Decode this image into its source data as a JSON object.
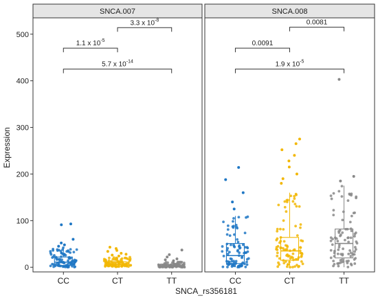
{
  "chart_data": {
    "type": "box",
    "xlabel": "SNCA_rs356181",
    "ylabel": "Expression",
    "categories": [
      "CC",
      "CT",
      "TT"
    ],
    "yticks": [
      0,
      100,
      200,
      300,
      400,
      500
    ],
    "ylim": [
      -10,
      535
    ],
    "colors": {
      "CC": "#1f77c4",
      "CT": "#f2b705",
      "TT": "#888888"
    },
    "panels": [
      {
        "title": "SNCA.007",
        "boxes": [
          {
            "category": "CC",
            "min": 0,
            "q1": 4,
            "median": 11,
            "q3": 22,
            "max": 42
          },
          {
            "category": "CT",
            "min": 0,
            "q1": 3,
            "median": 6,
            "q3": 12,
            "max": 22
          },
          {
            "category": "TT",
            "min": 0,
            "q1": 1,
            "median": 3,
            "q3": 6,
            "max": 12
          }
        ],
        "outliers": [
          {
            "category": "CC",
            "values": [
              93,
              91,
              60,
              52,
              48,
              45
            ]
          },
          {
            "category": "CT",
            "values": [
              43,
              40,
              36,
              34,
              30,
              28,
              26,
              24
            ]
          },
          {
            "category": "TT",
            "values": [
              37,
              27,
              22,
              18,
              16,
              14
            ]
          }
        ],
        "comparisons": [
          {
            "groups": [
              "CT",
              "TT"
            ],
            "label": "3.3 x 10",
            "exp": "-8",
            "y": 514
          },
          {
            "groups": [
              "CC",
              "CT"
            ],
            "label": "1.1 x 10",
            "exp": "-5",
            "y": 470
          },
          {
            "groups": [
              "CC",
              "TT"
            ],
            "label": "5.7 x 10",
            "exp": "-14",
            "y": 425
          }
        ]
      },
      {
        "title": "SNCA.008",
        "boxes": [
          {
            "category": "CC",
            "min": 0,
            "q1": 8,
            "median": 25,
            "q3": 51,
            "max": 110
          },
          {
            "category": "CT",
            "min": 0,
            "q1": 15,
            "median": 35,
            "q3": 64,
            "max": 160
          },
          {
            "category": "TT",
            "min": 0,
            "q1": 20,
            "median": 51,
            "q3": 82,
            "max": 175
          }
        ],
        "outliers": [
          {
            "category": "CC",
            "values": [
              214,
              188,
              160,
              140,
              125
            ]
          },
          {
            "category": "CT",
            "values": [
              275,
              265,
              252,
              240,
              228,
              215,
              200,
              190,
              180
            ]
          },
          {
            "category": "TT",
            "values": [
              403,
              195,
              185
            ]
          }
        ],
        "comparisons": [
          {
            "groups": [
              "CT",
              "TT"
            ],
            "label": "0.0081",
            "exp": "",
            "y": 515
          },
          {
            "groups": [
              "CC",
              "CT"
            ],
            "label": "0.0091",
            "exp": "",
            "y": 470
          },
          {
            "groups": [
              "CC",
              "TT"
            ],
            "label": "1.9 x 10",
            "exp": "-5",
            "y": 425
          }
        ]
      }
    ]
  }
}
